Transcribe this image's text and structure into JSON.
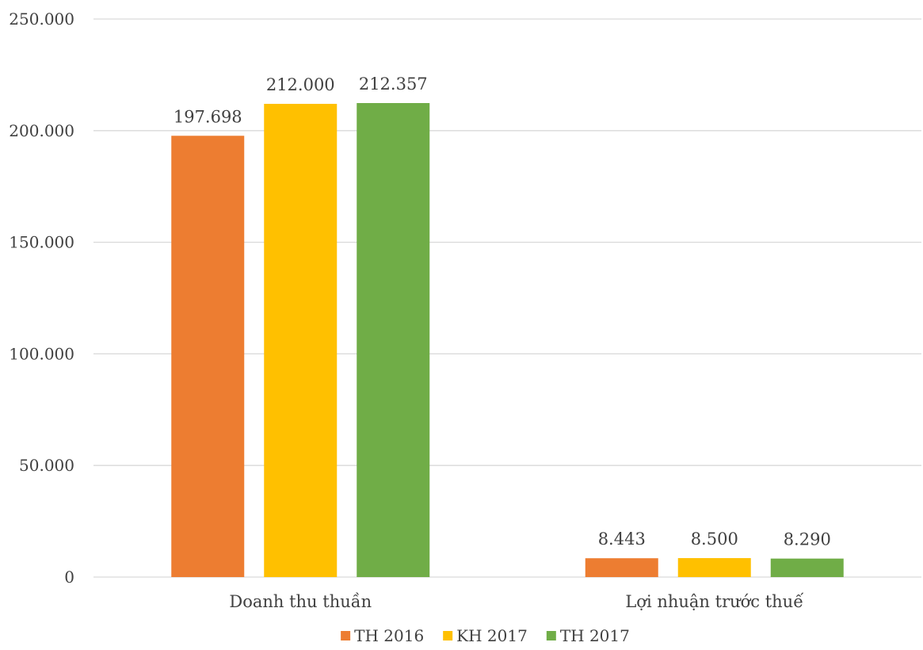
{
  "chart_data": {
    "type": "bar",
    "categories": [
      "Doanh thu thuần",
      "Lợi nhuận trước thuế"
    ],
    "series": [
      {
        "name": "TH 2016",
        "values": [
          197698,
          8443
        ],
        "labels": [
          "197.698",
          "8.443"
        ],
        "color": "#ED7D31"
      },
      {
        "name": "KH 2017",
        "values": [
          212000,
          8500
        ],
        "labels": [
          "212.000",
          "8.500"
        ],
        "color": "#FFC000"
      },
      {
        "name": "TH 2017",
        "values": [
          212357,
          8290
        ],
        "labels": [
          "212.357",
          "8.290"
        ],
        "color": "#70AD47"
      }
    ],
    "ylim": [
      0,
      250000
    ],
    "yticks": [
      0,
      50000,
      100000,
      150000,
      200000,
      250000
    ],
    "ytick_labels": [
      "0",
      "50.000",
      "100.000",
      "150.000",
      "200.000",
      "250.000"
    ],
    "grid": true,
    "legend_position": "bottom"
  }
}
